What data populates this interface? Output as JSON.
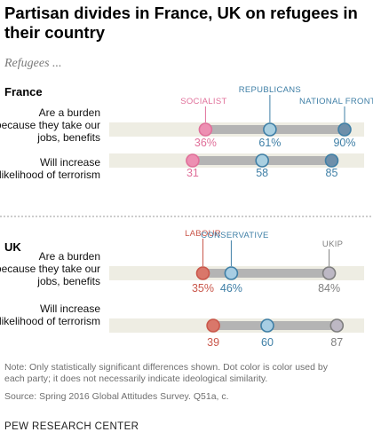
{
  "title": "Partisan divides in France, UK on refugees in their country",
  "subtitle": "Refugees ...",
  "chart_data": [
    {
      "type": "dot_range",
      "panel": "France",
      "xlim": [
        0,
        100
      ],
      "categories": [
        "Are a burden because they take our jobs, benefits",
        "Will increase the likelihood of terrorism"
      ],
      "series": [
        {
          "name": "SOCIALIST",
          "color": "#ed8fb2",
          "values": [
            36,
            31
          ],
          "value_labels": [
            "36%",
            "31"
          ]
        },
        {
          "name": "REPUBLICANS",
          "color": "#a9cfe0",
          "values": [
            61,
            58
          ],
          "value_labels": [
            "61%",
            "58"
          ]
        },
        {
          "name": "NATIONAL FRONT",
          "color": "#6e8faa",
          "values": [
            90,
            85
          ],
          "value_labels": [
            "90%",
            "85"
          ]
        }
      ]
    },
    {
      "type": "dot_range",
      "panel": "UK",
      "xlim": [
        0,
        100
      ],
      "categories": [
        "Are a burden because they take our jobs, benefits",
        "Will increase the likelihood of terrorism"
      ],
      "series": [
        {
          "name": "LABOUR",
          "color": "#d9776a",
          "values": [
            35,
            39
          ],
          "value_labels": [
            "35%",
            "39"
          ]
        },
        {
          "name": "CONSERVATIVE",
          "color": "#a7cde3",
          "values": [
            46,
            60
          ],
          "value_labels": [
            "46%",
            "60"
          ]
        },
        {
          "name": "UKIP",
          "color": "#bdb8c4",
          "values": [
            84,
            87
          ],
          "value_labels": [
            "84%",
            "87"
          ]
        }
      ]
    }
  ],
  "colors": {
    "bar_track": "#eeede3",
    "range_bar": "#b4b4b4",
    "SOCIALIST_text": "#e0709a",
    "REPUBLICANS_text": "#3f7fa6",
    "NATIONAL FRONT_text": "#3f7fa6",
    "LABOUR_text": "#c9574b",
    "CONSERVATIVE_text": "#3f7fa6",
    "UKIP_text": "#7f7f7f",
    "dot_stroke_default": "#3f7fa6",
    "dot_stroke_socialist": "#e0709a",
    "dot_stroke_labour": "#c9574b",
    "dot_stroke_ukip": "#7f7f7f"
  },
  "notes": {
    "line1": "Note: Only statistically significant differences shown. Dot color is color used by",
    "line2": "each party; it does not necessarily indicate ideological similarity.",
    "source": "Source: Spring 2016 Global Attitudes Survey. Q51a, c."
  },
  "brand": "PEW RESEARCH CENTER"
}
